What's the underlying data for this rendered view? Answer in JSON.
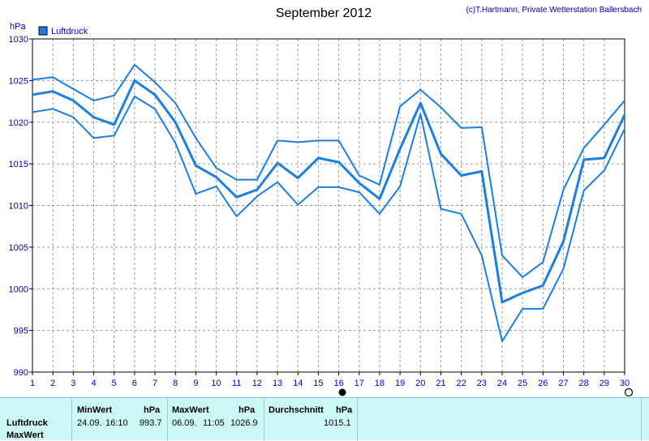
{
  "chart_data": {
    "type": "line",
    "title": "September 2012",
    "credit": "(c)T.Hartmann, Private Wetterstation Ballersbach",
    "ylabel": "hPa",
    "ylim": [
      990,
      1030
    ],
    "yticks": [
      990,
      995,
      1000,
      1005,
      1010,
      1015,
      1020,
      1025,
      1030
    ],
    "xlim": [
      1,
      30
    ],
    "x": [
      1,
      2,
      3,
      4,
      5,
      6,
      7,
      8,
      9,
      10,
      11,
      12,
      13,
      14,
      15,
      16,
      17,
      18,
      19,
      20,
      21,
      22,
      23,
      24,
      25,
      26,
      27,
      28,
      29,
      30
    ],
    "grid": true,
    "legend": {
      "position": "top-left",
      "entries": [
        "Luftdruck"
      ]
    },
    "color": "#1a7fe0",
    "series": [
      {
        "name": "Luftdruck",
        "role": "mean",
        "values": [
          1023.3,
          1023.7,
          1022.6,
          1020.6,
          1019.7,
          1025.0,
          1023.3,
          1020.0,
          1014.8,
          1013.4,
          1011.0,
          1011.9,
          1015.1,
          1013.3,
          1015.7,
          1015.2,
          1012.7,
          1010.8,
          1016.8,
          1022.3,
          1016.2,
          1013.6,
          1014.1,
          998.4,
          999.5,
          1000.4,
          1005.7,
          1015.5,
          1015.7,
          1020.9
        ]
      },
      {
        "role": "max",
        "values": [
          1025.1,
          1025.4,
          1024.0,
          1022.6,
          1023.2,
          1026.9,
          1024.8,
          1022.3,
          1018.1,
          1014.5,
          1013.1,
          1013.1,
          1017.8,
          1017.6,
          1017.8,
          1017.8,
          1013.6,
          1012.5,
          1021.9,
          1023.9,
          1021.8,
          1019.3,
          1019.4,
          1004.0,
          1001.4,
          1003.2,
          1011.9,
          1016.9,
          1019.7,
          1022.6
        ]
      },
      {
        "role": "min",
        "values": [
          1021.2,
          1021.6,
          1020.6,
          1018.1,
          1018.4,
          1023.1,
          1021.6,
          1017.5,
          1011.4,
          1012.3,
          1008.7,
          1011.1,
          1012.8,
          1010.1,
          1012.2,
          1012.2,
          1011.6,
          1009.0,
          1012.3,
          1021.0,
          1009.6,
          1009.0,
          1004.0,
          993.7,
          997.6,
          997.6,
          1002.4,
          1011.8,
          1014.2,
          1019.2
        ]
      }
    ]
  },
  "stats": {
    "row_labels": [
      "Luftdruck",
      "MaxWert"
    ],
    "min": {
      "header": "MinWert",
      "unit": "hPa",
      "date": "24.09.",
      "time": "16:10",
      "value": "993.7"
    },
    "max": {
      "header": "MaxWert",
      "unit": "hPa",
      "date": "06.09.",
      "time": "11:05",
      "value": "1026.9"
    },
    "avg": {
      "header": "Durchschnitt",
      "unit": "hPa",
      "value": "1015.1"
    }
  }
}
